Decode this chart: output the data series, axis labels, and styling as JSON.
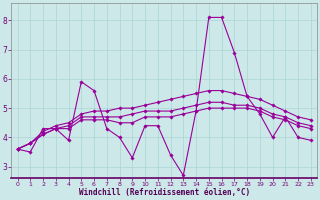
{
  "background_color": "#cce8e8",
  "grid_color": "#aad4d4",
  "line_color": "#990099",
  "xlabel": "Windchill (Refroidissement éolien,°C)",
  "xlim": [
    -0.5,
    23.5
  ],
  "ylim": [
    2.6,
    8.6
  ],
  "xticks": [
    0,
    1,
    2,
    3,
    4,
    5,
    6,
    7,
    8,
    9,
    10,
    11,
    12,
    13,
    14,
    15,
    16,
    17,
    18,
    19,
    20,
    21,
    22,
    23
  ],
  "yticks": [
    3,
    4,
    5,
    6,
    7,
    8
  ],
  "series": [
    [
      3.6,
      3.5,
      4.3,
      4.3,
      3.9,
      5.9,
      5.6,
      4.3,
      4.0,
      3.3,
      4.4,
      4.4,
      3.4,
      2.7,
      4.9,
      8.1,
      8.1,
      6.9,
      5.4,
      4.8,
      4.0,
      4.7,
      4.0,
      3.9
    ],
    [
      3.6,
      3.8,
      4.1,
      4.3,
      4.3,
      4.6,
      4.6,
      4.6,
      4.5,
      4.5,
      4.7,
      4.7,
      4.7,
      4.8,
      4.9,
      5.0,
      5.0,
      5.0,
      5.0,
      4.9,
      4.7,
      4.6,
      4.4,
      4.3
    ],
    [
      3.6,
      3.8,
      4.1,
      4.3,
      4.4,
      4.7,
      4.7,
      4.7,
      4.7,
      4.8,
      4.9,
      4.9,
      4.9,
      5.0,
      5.1,
      5.2,
      5.2,
      5.1,
      5.1,
      5.0,
      4.8,
      4.7,
      4.5,
      4.4
    ],
    [
      3.6,
      3.8,
      4.2,
      4.4,
      4.5,
      4.8,
      4.9,
      4.9,
      5.0,
      5.0,
      5.1,
      5.2,
      5.3,
      5.4,
      5.5,
      5.6,
      5.6,
      5.5,
      5.4,
      5.3,
      5.1,
      4.9,
      4.7,
      4.6
    ]
  ]
}
